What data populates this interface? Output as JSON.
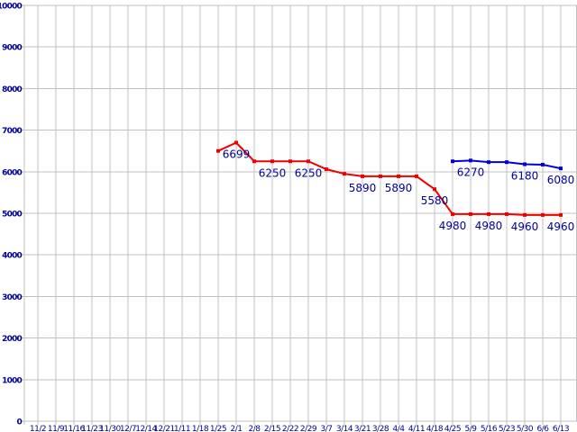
{
  "chart_data": {
    "type": "line",
    "title": "",
    "xlabel": "",
    "ylabel": "",
    "ylim": [
      0,
      10000
    ],
    "y_ticks": [
      0,
      1000,
      2000,
      3000,
      4000,
      5000,
      6000,
      7000,
      8000,
      9000,
      10000
    ],
    "x_tick_labels": [
      "11/2",
      "11/9",
      "11/16",
      "11/23",
      "11/30",
      "12/7",
      "12/14",
      "12/21",
      "1/11",
      "1/18",
      "1/25",
      "2/1",
      "2/8",
      "2/15",
      "2/22",
      "2/29",
      "3/7",
      "3/14",
      "3/21",
      "3/28",
      "4/4",
      "4/11",
      "4/18",
      "4/25",
      "5/9",
      "5/16",
      "5/23",
      "5/30",
      "6/6",
      "6/13"
    ],
    "grid": true,
    "legend": "none",
    "grid_color": "#c0c0c0",
    "axis_label_color": "#000099",
    "point_label_color": "#000099",
    "series": [
      {
        "color": "#ee0000",
        "start_index": 10,
        "values": [
          6500,
          6699,
          6250,
          6250,
          6250,
          6250,
          6060,
          5950,
          5890,
          5890,
          5890,
          5890,
          5580,
          4980,
          4980,
          4980,
          4980,
          4960,
          4960,
          4960
        ],
        "point_labels": [
          {
            "index": 11,
            "text": "6699"
          },
          {
            "index": 13,
            "text": "6250"
          },
          {
            "index": 15,
            "text": "6250"
          },
          {
            "index": 18,
            "text": "5890"
          },
          {
            "index": 20,
            "text": "5890"
          },
          {
            "index": 22,
            "text": "5580"
          },
          {
            "index": 23,
            "text": "4980"
          },
          {
            "index": 25,
            "text": "4980"
          },
          {
            "index": 27,
            "text": "4960"
          },
          {
            "index": 29,
            "text": "4960"
          }
        ]
      },
      {
        "color": "#0000dd",
        "start_index": 23,
        "values": [
          6250,
          6270,
          6230,
          6230,
          6180,
          6170,
          6080
        ],
        "point_labels": [
          {
            "index": 24,
            "text": "6270"
          },
          {
            "index": 27,
            "text": "6180"
          },
          {
            "index": 29,
            "text": "6080"
          }
        ]
      }
    ]
  }
}
